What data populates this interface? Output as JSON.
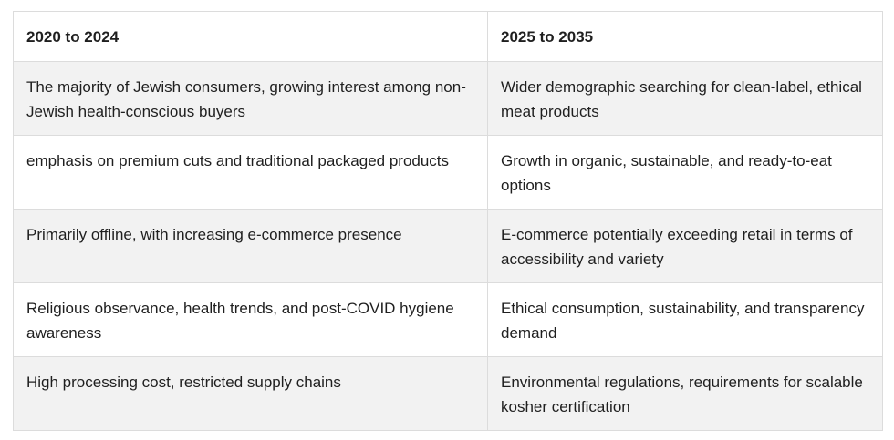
{
  "table": {
    "headers": [
      "2020 to 2024",
      "2025 to 2035"
    ],
    "rows": [
      [
        "The majority of Jewish consumers, growing interest among non-Jewish health-conscious buyers",
        "Wider demographic searching for clean-label, ethical meat products"
      ],
      [
        "emphasis on premium cuts and traditional packaged products",
        "Growth in organic, sustainable, and ready-to-eat options"
      ],
      [
        "Primarily offline, with increasing e-commerce presence",
        "E-commerce potentially exceeding retail in terms of accessibility and variety"
      ],
      [
        "Religious observance, health trends, and post-COVID hygiene awareness",
        "Ethical consumption, sustainability, and transparency demand"
      ],
      [
        "High processing cost, restricted supply chains",
        "Environmental regulations, requirements for scalable kosher certification"
      ]
    ]
  },
  "colors": {
    "stripe": "#f2f2f2",
    "border": "#dcdcdc",
    "text": "#1f1f1f"
  }
}
